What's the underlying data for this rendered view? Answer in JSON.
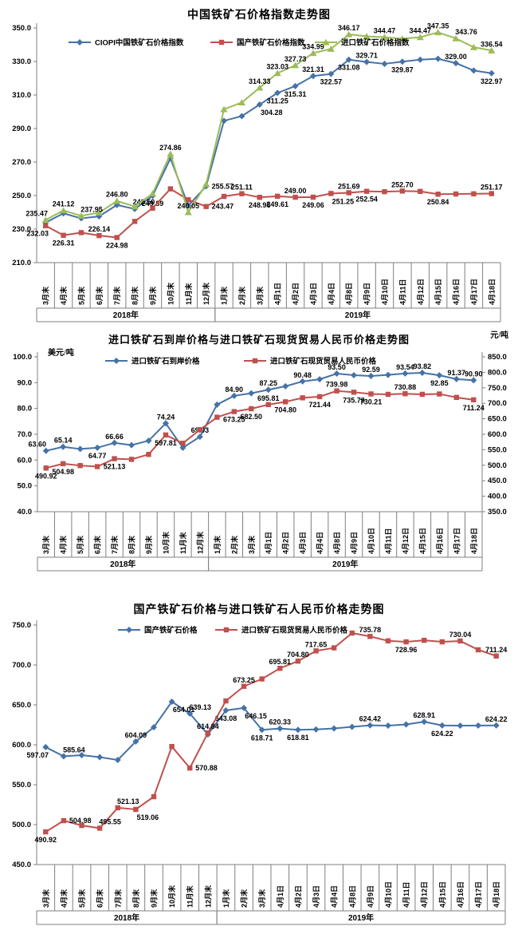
{
  "page": {
    "background": "#ffffff"
  },
  "x_categories": [
    "3月末",
    "4月末",
    "5月末",
    "6月末",
    "7月末",
    "8月末",
    "9月末",
    "10月末",
    "11月末",
    "12月末",
    "1月末",
    "2月末",
    "3月末",
    "4月1日",
    "4月2日",
    "4月3日",
    "4月4日",
    "4月8日",
    "4月9日",
    "4月10日",
    "4月11日",
    "4月12日",
    "4月15日",
    "4月16日",
    "4月17日",
    "4月18日"
  ],
  "year_groups": [
    {
      "label": "2018年",
      "count": 10
    },
    {
      "label": "2019年",
      "count": 16
    }
  ],
  "chart_data": [
    {
      "type": "line",
      "title": "中国铁矿石价格指数走势图",
      "y_axis": {
        "min": 210,
        "max": 350,
        "step": 20
      },
      "grid": false,
      "legend_position": "top-inside",
      "series": [
        {
          "name": "CIOPI中国铁矿石价格指数",
          "color": "#4572a7",
          "marker": "diamond",
          "axis": "left",
          "values": [
            233.9,
            239.4,
            236.4,
            237.6,
            244.4,
            242.0,
            249.89,
            272.2,
            244.0,
            255.57,
            294.6,
            297.4,
            304.28,
            311.25,
            315.31,
            321.31,
            322.57,
            331.08,
            329.71,
            328.6,
            329.87,
            331.1,
            331.6,
            329.0,
            324.6,
            322.97
          ],
          "labels": [
            [
              6,
              "249.89",
              "b"
            ],
            [
              9,
              "255.57",
              "r"
            ],
            [
              12,
              "304.28",
              "br"
            ],
            [
              13,
              "311.25",
              "b"
            ],
            [
              14,
              "315.31",
              "b"
            ],
            [
              15,
              "321.31",
              "a"
            ],
            [
              16,
              "322.57",
              "b"
            ],
            [
              17,
              "331.08",
              "b"
            ],
            [
              18,
              "329.71",
              "a"
            ],
            [
              20,
              "329.87",
              "b"
            ],
            [
              23,
              "329.00",
              "a"
            ],
            [
              25,
              "322.97",
              "b"
            ]
          ]
        },
        {
          "name": "国产铁矿石价格指数",
          "color": "#c0504d",
          "marker": "square",
          "axis": "left",
          "values": [
            232.03,
            226.31,
            227.9,
            226.14,
            224.98,
            234.6,
            242.5,
            254.0,
            247.5,
            243.47,
            249.5,
            251.11,
            248.96,
            249.61,
            249.0,
            249.06,
            251.25,
            251.69,
            252.54,
            252.3,
            252.7,
            252.5,
            250.84,
            250.95,
            251.05,
            251.17
          ],
          "labels": [
            [
              0,
              "232.03",
              "bl"
            ],
            [
              1,
              "226.31",
              "b"
            ],
            [
              3,
              "226.14",
              "a"
            ],
            [
              4,
              "224.98",
              "b"
            ],
            [
              6,
              "242.50",
              "al"
            ],
            [
              9,
              "243.47",
              "r"
            ],
            [
              11,
              "251.11",
              "a"
            ],
            [
              12,
              "248.96",
              "b"
            ],
            [
              13,
              "249.61",
              "b"
            ],
            [
              14,
              "249.00",
              "a"
            ],
            [
              15,
              "249.06",
              "b"
            ],
            [
              16,
              "251.25",
              "br"
            ],
            [
              17,
              "251.69",
              "a"
            ],
            [
              18,
              "252.54",
              "b"
            ],
            [
              20,
              "252.70",
              "a"
            ],
            [
              22,
              "250.84",
              "b"
            ],
            [
              25,
              "251.17",
              "a"
            ]
          ]
        },
        {
          "name": "进口铁矿石价格指数",
          "color": "#9bbb59",
          "marker": "triangle",
          "axis": "left",
          "values": [
            235.47,
            241.12,
            237.95,
            239.8,
            246.8,
            243.5,
            251.2,
            274.86,
            240.05,
            256.8,
            301.5,
            305.5,
            314.33,
            323.03,
            327.73,
            334.99,
            337.5,
            346.17,
            345.0,
            344.47,
            343.6,
            344.47,
            347.35,
            343.76,
            338.5,
            336.54
          ],
          "labels": [
            [
              0,
              "235.47",
              "al"
            ],
            [
              1,
              "241.12",
              "a"
            ],
            [
              2,
              "237.95",
              "ar"
            ],
            [
              4,
              "246.80",
              "a"
            ],
            [
              7,
              "274.86",
              "a"
            ],
            [
              8,
              "240.05",
              "a"
            ],
            [
              12,
              "314.33",
              "a"
            ],
            [
              13,
              "323.03",
              "a"
            ],
            [
              14,
              "327.73",
              "a"
            ],
            [
              15,
              "334.99",
              "a"
            ],
            [
              17,
              "346.17",
              "a"
            ],
            [
              19,
              "344.47",
              "a"
            ],
            [
              21,
              "344.47",
              "a"
            ],
            [
              22,
              "347.35",
              "a"
            ],
            [
              23,
              "343.76",
              "ar"
            ],
            [
              25,
              "336.54",
              "a"
            ]
          ]
        }
      ]
    },
    {
      "type": "line",
      "title": "进口铁矿石到岸价格与进口铁矿石现货贸易人民币价格走势图",
      "y_axis": {
        "min": 40,
        "max": 100,
        "step": 10,
        "unit": "美元/吨"
      },
      "y2_axis": {
        "min": 350,
        "max": 850,
        "step": 50,
        "unit": "元/吨"
      },
      "grid": false,
      "legend_position": "top-inside",
      "series": [
        {
          "name": "进口铁矿石到岸价格",
          "color": "#4572a7",
          "marker": "diamond",
          "axis": "left",
          "values": [
            63.6,
            65.14,
            64.3,
            64.77,
            66.66,
            65.8,
            67.5,
            74.24,
            64.8,
            69.03,
            81.5,
            84.9,
            85.9,
            87.25,
            88.6,
            90.48,
            91.3,
            93.5,
            92.9,
            92.59,
            93.0,
            93.54,
            93.82,
            92.85,
            91.37,
            90.9
          ],
          "labels": [
            [
              0,
              "63.60",
              "al"
            ],
            [
              1,
              "65.14",
              "a"
            ],
            [
              3,
              "64.77",
              "b"
            ],
            [
              4,
              "66.66",
              "a"
            ],
            [
              7,
              "74.24",
              "a"
            ],
            [
              9,
              "69.03",
              "a"
            ],
            [
              11,
              "84.90",
              "a"
            ],
            [
              13,
              "87.25",
              "a"
            ],
            [
              15,
              "90.48",
              "a"
            ],
            [
              17,
              "93.50",
              "a"
            ],
            [
              19,
              "92.59",
              "a"
            ],
            [
              21,
              "93.54",
              "a"
            ],
            [
              22,
              "93.82",
              "a"
            ],
            [
              23,
              "92.85",
              "b"
            ],
            [
              24,
              "91.37",
              "a"
            ],
            [
              25,
              "90.90",
              "a"
            ]
          ]
        },
        {
          "name": "进口铁矿石现货贸易人民币价格",
          "color": "#c0504d",
          "marker": "square",
          "axis": "right",
          "values": [
            490.92,
            504.98,
            499.0,
            495.55,
            521.13,
            519.06,
            535.0,
            597.81,
            570.88,
            614.84,
            655.0,
            673.25,
            682.5,
            695.81,
            704.8,
            717.65,
            721.44,
            739.98,
            735.78,
            730.21,
            728.96,
            730.88,
            729.0,
            730.04,
            719.0,
            711.24
          ],
          "labels": [
            [
              0,
              "490.92",
              "b"
            ],
            [
              1,
              "504.98",
              "b"
            ],
            [
              4,
              "521.13",
              "b"
            ],
            [
              7,
              "597.81",
              "b"
            ],
            [
              11,
              "673.25",
              "b"
            ],
            [
              12,
              "682.50",
              "b"
            ],
            [
              13,
              "695.81",
              "a"
            ],
            [
              14,
              "704.80",
              "b"
            ],
            [
              16,
              "721.44",
              "b"
            ],
            [
              17,
              "739.98",
              "a"
            ],
            [
              18,
              "735.78",
              "b"
            ],
            [
              19,
              "730.21",
              "b"
            ],
            [
              21,
              "730.88",
              "a"
            ],
            [
              25,
              "711.24",
              "b"
            ]
          ]
        }
      ]
    },
    {
      "type": "line",
      "title": "国产铁矿石价格与进口铁矿石人民币价格走势图",
      "y_axis": {
        "min": 450,
        "max": 750,
        "step": 50
      },
      "grid": false,
      "legend_position": "top-inside",
      "series": [
        {
          "name": "国产铁矿石价格",
          "color": "#4572a7",
          "marker": "diamond",
          "axis": "left",
          "values": [
            597.07,
            585.64,
            587.0,
            584.5,
            581.0,
            604.09,
            622.0,
            654.01,
            639.13,
            613.0,
            643.08,
            646.15,
            618.71,
            620.33,
            618.81,
            619.3,
            620.5,
            622.5,
            624.42,
            624.0,
            625.5,
            628.91,
            624.22,
            624.0,
            624.1,
            624.22
          ],
          "labels": [
            [
              0,
              "597.07",
              "bl"
            ],
            [
              1,
              "585.64",
              "ar"
            ],
            [
              5,
              "604.09",
              "a"
            ],
            [
              7,
              "654.01",
              "br"
            ],
            [
              8,
              "639.13",
              "ar"
            ],
            [
              10,
              "643.08",
              "b"
            ],
            [
              11,
              "646.15",
              "br"
            ],
            [
              12,
              "618.71",
              "b"
            ],
            [
              13,
              "620.33",
              "a"
            ],
            [
              14,
              "618.81",
              "b"
            ],
            [
              18,
              "624.42",
              "a"
            ],
            [
              21,
              "628.91",
              "a"
            ],
            [
              22,
              "624.22",
              "b"
            ],
            [
              25,
              "624.22",
              "a"
            ]
          ]
        },
        {
          "name": "进口铁矿石现货贸易人民币价格",
          "color": "#c0504d",
          "marker": "square",
          "axis": "left",
          "values": [
            490.92,
            504.98,
            499.0,
            495.55,
            521.13,
            519.06,
            535.0,
            597.81,
            570.88,
            614.84,
            655.0,
            673.25,
            682.5,
            695.81,
            704.8,
            717.65,
            721.44,
            739.98,
            735.78,
            730.21,
            728.96,
            730.88,
            729.0,
            730.04,
            719.0,
            711.24
          ],
          "labels": [
            [
              0,
              "490.92",
              "b"
            ],
            [
              1,
              "504.98",
              "r"
            ],
            [
              3,
              "495.55",
              "ar"
            ],
            [
              4,
              "521.13",
              "ar"
            ],
            [
              5,
              "519.06",
              "br"
            ],
            [
              8,
              "570.88",
              "r"
            ],
            [
              9,
              "614.84",
              "a"
            ],
            [
              11,
              "673.25",
              "a"
            ],
            [
              13,
              "695.81",
              "a"
            ],
            [
              14,
              "704.80",
              "a"
            ],
            [
              15,
              "717.65",
              "a"
            ],
            [
              18,
              "735.78",
              "a"
            ],
            [
              20,
              "728.96",
              "b"
            ],
            [
              23,
              "730.04",
              "a"
            ],
            [
              25,
              "711.24",
              "a"
            ]
          ]
        }
      ]
    }
  ]
}
